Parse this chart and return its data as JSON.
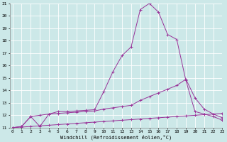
{
  "xlabel": "Windchill (Refroidissement éolien,°C)",
  "xlim": [
    0,
    23
  ],
  "ylim": [
    11,
    21
  ],
  "xticks": [
    0,
    1,
    2,
    3,
    4,
    5,
    6,
    7,
    8,
    9,
    10,
    11,
    12,
    13,
    14,
    15,
    16,
    17,
    18,
    19,
    20,
    21,
    22,
    23
  ],
  "yticks": [
    11,
    12,
    13,
    14,
    15,
    16,
    17,
    18,
    19,
    20,
    21
  ],
  "background_color": "#cce8e8",
  "grid_color": "#ffffff",
  "line_color": "#993399",
  "line1_x": [
    0,
    1,
    2,
    3,
    4,
    5,
    6,
    7,
    8,
    9,
    10,
    11,
    12,
    13,
    14,
    15,
    16,
    17,
    18,
    19,
    20,
    21,
    22,
    23
  ],
  "line1_y": [
    11.0,
    11.05,
    11.1,
    11.15,
    11.2,
    11.25,
    11.3,
    11.35,
    11.4,
    11.45,
    11.5,
    11.55,
    11.6,
    11.65,
    11.7,
    11.75,
    11.8,
    11.85,
    11.9,
    11.95,
    12.0,
    12.05,
    12.1,
    12.15
  ],
  "line2_x": [
    0,
    1,
    2,
    3,
    4,
    5,
    6,
    7,
    8,
    9,
    10,
    11,
    12,
    13,
    14,
    15,
    16,
    17,
    18,
    19,
    20,
    21,
    22,
    23
  ],
  "line2_y": [
    11.0,
    11.1,
    11.9,
    12.0,
    12.1,
    12.15,
    12.2,
    12.25,
    12.3,
    12.35,
    12.5,
    12.6,
    12.7,
    12.8,
    13.2,
    13.5,
    13.8,
    14.1,
    14.4,
    14.9,
    13.4,
    12.5,
    12.1,
    11.8
  ],
  "line3_x": [
    0,
    1,
    2,
    3,
    4,
    5,
    6,
    7,
    8,
    9,
    10,
    11,
    12,
    13,
    14,
    15,
    16,
    17,
    18,
    19,
    20,
    21,
    22,
    23
  ],
  "line3_y": [
    11.0,
    11.1,
    11.9,
    11.1,
    12.1,
    12.3,
    12.3,
    12.35,
    12.4,
    12.45,
    13.9,
    15.5,
    16.8,
    17.5,
    20.5,
    21.0,
    20.3,
    18.5,
    18.1,
    14.8,
    12.3,
    12.1,
    11.9,
    11.6
  ]
}
